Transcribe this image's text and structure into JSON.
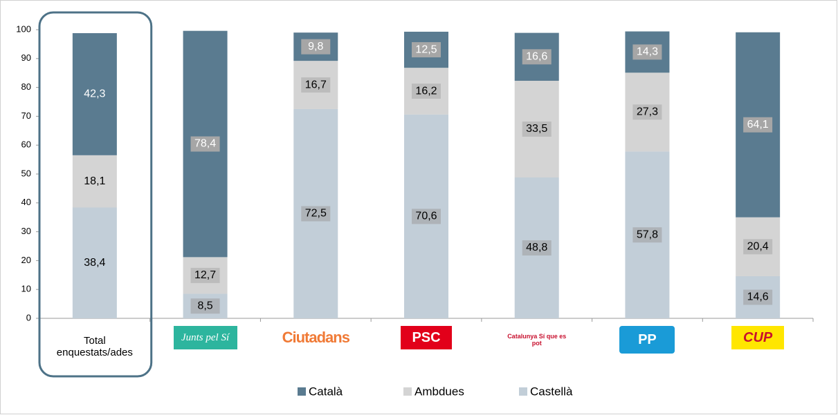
{
  "chart_data": {
    "type": "stacked_bar",
    "categories": [
      "Total enquestats/ades",
      "Junts pel Sí",
      "Ciutadans",
      "PSC",
      "Catalunya Sí que es pot",
      "PP",
      "CUP"
    ],
    "series": [
      {
        "name": "Català",
        "color": "#5a7b90",
        "values": [
          42.3,
          78.4,
          9.8,
          12.5,
          16.6,
          14.3,
          64.1
        ],
        "value_labels": [
          "42,3",
          "78,4",
          "9,8",
          "12,5",
          "16,6",
          "14,3",
          "64,1"
        ]
      },
      {
        "name": "Ambdues",
        "color": "#d4d4d4",
        "values": [
          18.1,
          12.7,
          16.7,
          16.2,
          33.5,
          27.3,
          20.4
        ],
        "value_labels": [
          "18,1",
          "12,7",
          "16,7",
          "16,2",
          "33,5",
          "27,3",
          "20,4"
        ]
      },
      {
        "name": "Castellà",
        "color": "#c2ced8",
        "values": [
          38.4,
          8.5,
          72.5,
          70.6,
          48.8,
          57.8,
          14.6
        ],
        "value_labels": [
          "38,4",
          "8,5",
          "72,5",
          "70,6",
          "48,8",
          "57,8",
          "14,6"
        ]
      }
    ],
    "ylim": [
      0,
      100
    ],
    "yticks": [
      0,
      10,
      20,
      30,
      40,
      50,
      60,
      70,
      80,
      90,
      100
    ],
    "legend": "bottom"
  }
}
